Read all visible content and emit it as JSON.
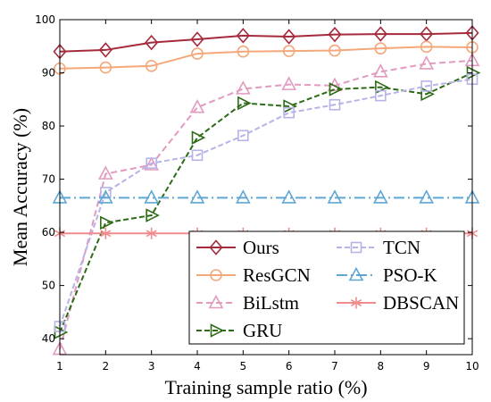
{
  "chart_data": {
    "type": "line",
    "xlabel": "Training sample ratio (%)",
    "ylabel": "Mean Accuracy (%)",
    "x": [
      1,
      2,
      3,
      4,
      5,
      6,
      7,
      8,
      9,
      10
    ],
    "xlim": [
      1,
      10
    ],
    "ylim": [
      37,
      100
    ],
    "xticks": [
      "1",
      "2",
      "3",
      "4",
      "5",
      "6",
      "7",
      "8",
      "9",
      "10"
    ],
    "yticks": [
      40,
      50,
      60,
      70,
      80,
      90,
      100
    ],
    "ytick_labels": [
      "40",
      "50",
      "60",
      "70",
      "80",
      "90",
      "100"
    ],
    "legend_position": "bottom-right",
    "series": [
      {
        "name": "Ours",
        "color": "#a52a3c",
        "marker": "diamond",
        "dash": "",
        "values": [
          94.0,
          94.3,
          95.7,
          96.3,
          97.0,
          96.8,
          97.2,
          97.3,
          97.3,
          97.5
        ]
      },
      {
        "name": "ResGCN",
        "color": "#f4a87a",
        "marker": "circle",
        "dash": "",
        "values": [
          90.8,
          91.0,
          91.3,
          93.6,
          94.0,
          94.1,
          94.2,
          94.6,
          94.9,
          94.8
        ]
      },
      {
        "name": "BiLstm",
        "color": "#e39ac0",
        "marker": "triangle-up",
        "dash": "7,4",
        "values": [
          38.0,
          71.0,
          72.7,
          83.5,
          87.0,
          87.8,
          87.6,
          90.2,
          91.7,
          92.3
        ]
      },
      {
        "name": "GRU",
        "color": "#2e6b16",
        "marker": "triangle-right",
        "dash": "6,3",
        "values": [
          41.2,
          61.8,
          63.2,
          77.8,
          84.3,
          83.7,
          86.9,
          87.3,
          86.0,
          90.0
        ]
      },
      {
        "name": "TCN",
        "color": "#b6b4e6",
        "marker": "square",
        "dash": "6,3",
        "values": [
          42.3,
          67.5,
          73.0,
          74.5,
          78.2,
          82.5,
          84.0,
          85.7,
          87.5,
          88.8
        ]
      },
      {
        "name": "PSO-K",
        "color": "#5ea6d4",
        "marker": "triangle-up",
        "dash": "12,4,2,4",
        "values": [
          66.5,
          66.5,
          66.5,
          66.5,
          66.5,
          66.5,
          66.5,
          66.5,
          66.5,
          66.5
        ]
      },
      {
        "name": "DBSCAN",
        "color": "#f08c8c",
        "marker": "asterisk",
        "dash": "",
        "values": [
          59.8,
          59.8,
          59.8,
          59.8,
          59.8,
          59.8,
          59.8,
          59.8,
          59.8,
          59.8
        ]
      }
    ]
  }
}
